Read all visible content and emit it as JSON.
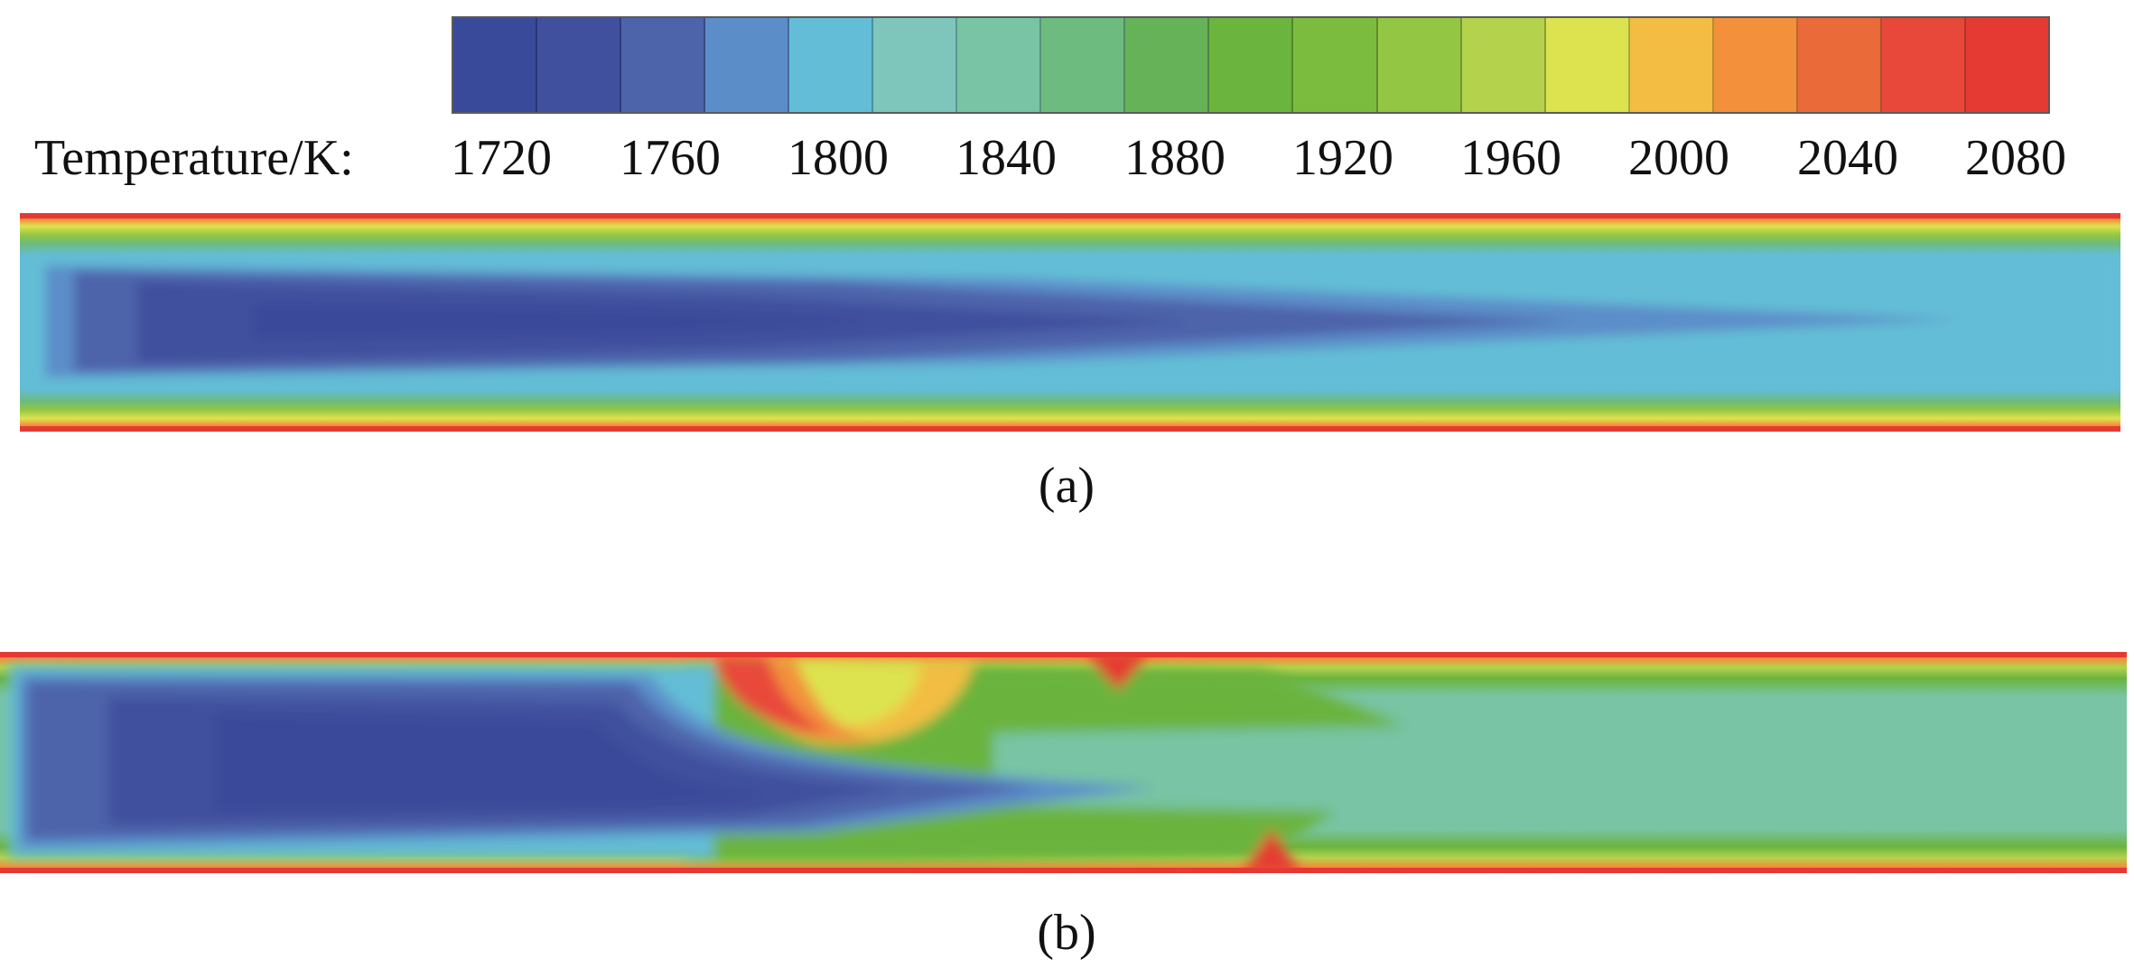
{
  "legend": {
    "quantity_label": "Temperature/K:",
    "ticks": [
      "1720",
      "1760",
      "1800",
      "1840",
      "1880",
      "1920",
      "1960",
      "2000",
      "2040",
      "2080"
    ],
    "colors": [
      "#3a4a9a",
      "#41509e",
      "#4d64aa",
      "#5b8ec9",
      "#63bdd6",
      "#7ec6bc",
      "#78c4a4",
      "#6dbb7e",
      "#66b258",
      "#6bb43e",
      "#7bbc3f",
      "#93c642",
      "#b4d24c",
      "#dde34f",
      "#f2bd42",
      "#f2903c",
      "#ea6a3a",
      "#e8483a",
      "#e53a33"
    ]
  },
  "panels": [
    {
      "caption": "(a)"
    },
    {
      "caption": "(b)"
    }
  ]
}
